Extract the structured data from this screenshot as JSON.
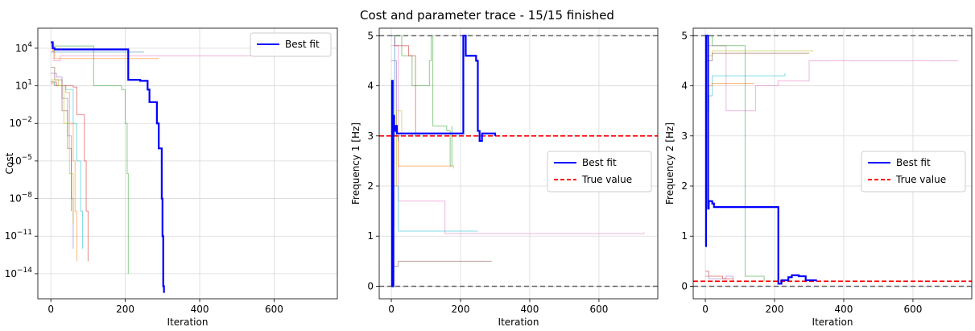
{
  "suptitle": "Cost and parameter trace - 15/15 finished",
  "chart_data": [
    {
      "type": "line",
      "ylabel": "Cost",
      "xlabel": "Iteration",
      "yscale": "log",
      "xlim": [
        -35,
        770
      ],
      "ylim_exp": [
        -16,
        5.6
      ],
      "x_ticks": [
        0,
        200,
        400,
        600
      ],
      "y_ticks": [
        4,
        1,
        -2,
        -5,
        -8,
        -11,
        -14
      ],
      "grid": true,
      "legend_position": "upper right",
      "legend": [
        "Best fit"
      ],
      "best_fit": {
        "name": "Best fit",
        "color": "#0000ff",
        "points": [
          [
            0,
            30000
          ],
          [
            5,
            10000
          ],
          [
            10,
            8000
          ],
          [
            207,
            8000
          ],
          [
            208,
            30
          ],
          [
            240,
            25
          ],
          [
            260,
            5
          ],
          [
            265,
            0.5
          ],
          [
            285,
            0.01
          ],
          [
            290,
            0.0001
          ],
          [
            298,
            1e-08
          ],
          [
            300,
            1e-11
          ],
          [
            302,
            1e-15
          ],
          [
            304,
            3e-16
          ]
        ]
      },
      "runs": [
        {
          "color": "#ff7f0e",
          "points": [
            [
              0,
              20000
            ],
            [
              5,
              6000
            ],
            [
              10,
              1500
            ],
            [
              290,
              1500
            ]
          ]
        },
        {
          "color": "#e377c2",
          "points": [
            [
              0,
              25000
            ],
            [
              8,
              1000
            ],
            [
              20,
              1000
            ],
            [
              25,
              2500
            ],
            [
              730,
              2500
            ]
          ]
        },
        {
          "color": "#ff7f0e",
          "points": [
            [
              0,
              15
            ],
            [
              10,
              10
            ],
            [
              40,
              3
            ],
            [
              50,
              0.01
            ],
            [
              60,
              1e-05
            ],
            [
              65,
              1e-09
            ],
            [
              70,
              1e-13
            ]
          ]
        },
        {
          "color": "#1f77b4",
          "points": [
            [
              0,
              5000
            ],
            [
              150,
              5000
            ],
            [
              250,
              5000
            ]
          ]
        },
        {
          "color": "#17becf",
          "points": [
            [
              0,
              20
            ],
            [
              10,
              10
            ],
            [
              40,
              5
            ],
            [
              60,
              0.01
            ],
            [
              70,
              1e-05
            ],
            [
              80,
              1e-09
            ],
            [
              85,
              1e-12
            ]
          ]
        },
        {
          "color": "#d62728",
          "points": [
            [
              0,
              20
            ],
            [
              15,
              10
            ],
            [
              60,
              8
            ],
            [
              70,
              0.05
            ],
            [
              90,
              1e-05
            ],
            [
              95,
              1e-09
            ],
            [
              100,
              1e-13
            ]
          ]
        },
        {
          "color": "#2ca02c",
          "points": [
            [
              0,
              15000
            ],
            [
              100,
              15000
            ],
            [
              115,
              10
            ],
            [
              190,
              5
            ],
            [
              200,
              0.01
            ],
            [
              205,
              1e-06
            ],
            [
              208,
              1e-14
            ]
          ]
        },
        {
          "color": "#9467bd",
          "points": [
            [
              0,
              100
            ],
            [
              15,
              50
            ],
            [
              30,
              1
            ],
            [
              45,
              0.001
            ],
            [
              55,
              1e-08
            ],
            [
              60,
              1e-12
            ]
          ]
        },
        {
          "color": "#8c564b",
          "points": [
            [
              0,
              300
            ],
            [
              10,
              30
            ],
            [
              30,
              0.1
            ],
            [
              45,
              0.0001
            ],
            [
              55,
              1e-09
            ]
          ]
        },
        {
          "color": "#bcbd22",
          "points": [
            [
              0,
              30
            ],
            [
              20,
              10
            ],
            [
              35,
              0.01
            ],
            [
              50,
              1e-06
            ],
            [
              60,
              1e-10
            ]
          ]
        }
      ]
    },
    {
      "type": "line",
      "ylabel": "Frequency 1 [Hz]",
      "xlabel": "Iteration",
      "xlim": [
        -35,
        770
      ],
      "ylim": [
        -0.25,
        5.15
      ],
      "x_ticks": [
        0,
        200,
        400,
        600
      ],
      "y_ticks": [
        0,
        1,
        2,
        3,
        4,
        5
      ],
      "grid": true,
      "legend_position": "center right",
      "legend": [
        "Best fit",
        "True value"
      ],
      "true_value": {
        "name": "True value",
        "value": 3.0,
        "color": "#ff0000"
      },
      "bounds": [
        0,
        5
      ],
      "best_fit": {
        "name": "Best fit",
        "color": "#0000ff",
        "points": [
          [
            0,
            0
          ],
          [
            2,
            4.1
          ],
          [
            4,
            0
          ],
          [
            6,
            3.4
          ],
          [
            8,
            3.1
          ],
          [
            12,
            3.2
          ],
          [
            16,
            3.05
          ],
          [
            207,
            3.05
          ],
          [
            208,
            5.0
          ],
          [
            215,
            4.6
          ],
          [
            245,
            4.5
          ],
          [
            250,
            3.1
          ],
          [
            255,
            2.9
          ],
          [
            262,
            3.05
          ],
          [
            300,
            3.0
          ]
        ]
      },
      "runs": [
        {
          "color": "#e377c2",
          "points": [
            [
              0,
              4.8
            ],
            [
              20,
              1.7
            ],
            [
              150,
              1.7
            ],
            [
              155,
              1.05
            ],
            [
              730,
              1.08
            ]
          ]
        },
        {
          "color": "#2ca02c",
          "points": [
            [
              0,
              5.0
            ],
            [
              30,
              4.6
            ],
            [
              60,
              4.0
            ],
            [
              110,
              4.5
            ],
            [
              115,
              5.0
            ],
            [
              120,
              3.2
            ],
            [
              160,
              3.1
            ],
            [
              170,
              2.4
            ],
            [
              175,
              3.2
            ]
          ]
        },
        {
          "color": "#ff7f0e",
          "points": [
            [
              0,
              3.0
            ],
            [
              20,
              2.4
            ],
            [
              180,
              2.35
            ]
          ]
        },
        {
          "color": "#8c564b",
          "points": [
            [
              0,
              0.4
            ],
            [
              20,
              0.5
            ],
            [
              290,
              0.5
            ]
          ]
        },
        {
          "color": "#17becf",
          "points": [
            [
              0,
              2.0
            ],
            [
              20,
              1.1
            ],
            [
              250,
              1.1
            ]
          ]
        },
        {
          "color": "#d62728",
          "points": [
            [
              0,
              5.0
            ],
            [
              10,
              4.8
            ],
            [
              50,
              4.6
            ],
            [
              70,
              3.0
            ],
            [
              80,
              3.05
            ]
          ]
        },
        {
          "color": "#9467bd",
          "points": [
            [
              0,
              4.5
            ],
            [
              15,
              3.0
            ],
            [
              40,
              3.0
            ]
          ]
        },
        {
          "color": "#bcbd22",
          "points": [
            [
              0,
              2.0
            ],
            [
              15,
              3.5
            ],
            [
              30,
              3.05
            ],
            [
              60,
              3.0
            ]
          ]
        },
        {
          "color": "#1f77b4",
          "points": [
            [
              0,
              5.0
            ],
            [
              10,
              3.0
            ],
            [
              20,
              2.9
            ]
          ]
        }
      ]
    },
    {
      "type": "line",
      "ylabel": "Frequency 2 [Hz]",
      "xlabel": "Iteration",
      "xlim": [
        -35,
        770
      ],
      "ylim": [
        -0.25,
        5.15
      ],
      "x_ticks": [
        0,
        200,
        400,
        600
      ],
      "y_ticks": [
        0,
        1,
        2,
        3,
        4,
        5
      ],
      "grid": true,
      "legend_position": "center right",
      "legend": [
        "Best fit",
        "True value"
      ],
      "true_value": {
        "name": "True value",
        "value": 0.1,
        "color": "#ff0000"
      },
      "bounds": [
        0,
        5
      ],
      "best_fit": {
        "name": "Best fit",
        "color": "#0000ff",
        "points": [
          [
            0,
            0.8
          ],
          [
            2,
            5.0
          ],
          [
            8,
            1.55
          ],
          [
            10,
            1.7
          ],
          [
            20,
            1.65
          ],
          [
            25,
            1.58
          ],
          [
            210,
            1.58
          ],
          [
            211,
            0.05
          ],
          [
            220,
            0.12
          ],
          [
            240,
            0.18
          ],
          [
            250,
            0.22
          ],
          [
            270,
            0.2
          ],
          [
            290,
            0.12
          ],
          [
            320,
            0.1
          ]
        ]
      },
      "runs": [
        {
          "color": "#e377c2",
          "points": [
            [
              0,
              4.8
            ],
            [
              60,
              3.5
            ],
            [
              140,
              3.5
            ],
            [
              145,
              4.0
            ],
            [
              210,
              4.1
            ],
            [
              300,
              4.5
            ],
            [
              730,
              4.5
            ]
          ]
        },
        {
          "color": "#2ca02c",
          "points": [
            [
              0,
              5.0
            ],
            [
              20,
              4.8
            ],
            [
              110,
              4.8
            ],
            [
              115,
              0.2
            ],
            [
              160,
              0.2
            ],
            [
              170,
              0.1
            ]
          ]
        },
        {
          "color": "#bcbd22",
          "points": [
            [
              0,
              4.6
            ],
            [
              20,
              4.7
            ],
            [
              310,
              4.68
            ]
          ]
        },
        {
          "color": "#8c564b",
          "points": [
            [
              0,
              4.5
            ],
            [
              20,
              4.65
            ],
            [
              300,
              4.65
            ]
          ]
        },
        {
          "color": "#17becf",
          "points": [
            [
              0,
              3.5
            ],
            [
              10,
              3.8
            ],
            [
              20,
              4.2
            ],
            [
              230,
              4.25
            ]
          ]
        },
        {
          "color": "#ff7f0e",
          "points": [
            [
              0,
              4.0
            ],
            [
              20,
              4.05
            ],
            [
              140,
              4.05
            ]
          ]
        },
        {
          "color": "#9467bd",
          "points": [
            [
              0,
              0.2
            ],
            [
              10,
              0.15
            ],
            [
              60,
              0.2
            ],
            [
              80,
              0.15
            ]
          ]
        },
        {
          "color": "#d62728",
          "points": [
            [
              0,
              0.3
            ],
            [
              10,
              0.2
            ],
            [
              50,
              0.15
            ],
            [
              80,
              0.1
            ]
          ]
        }
      ]
    }
  ]
}
